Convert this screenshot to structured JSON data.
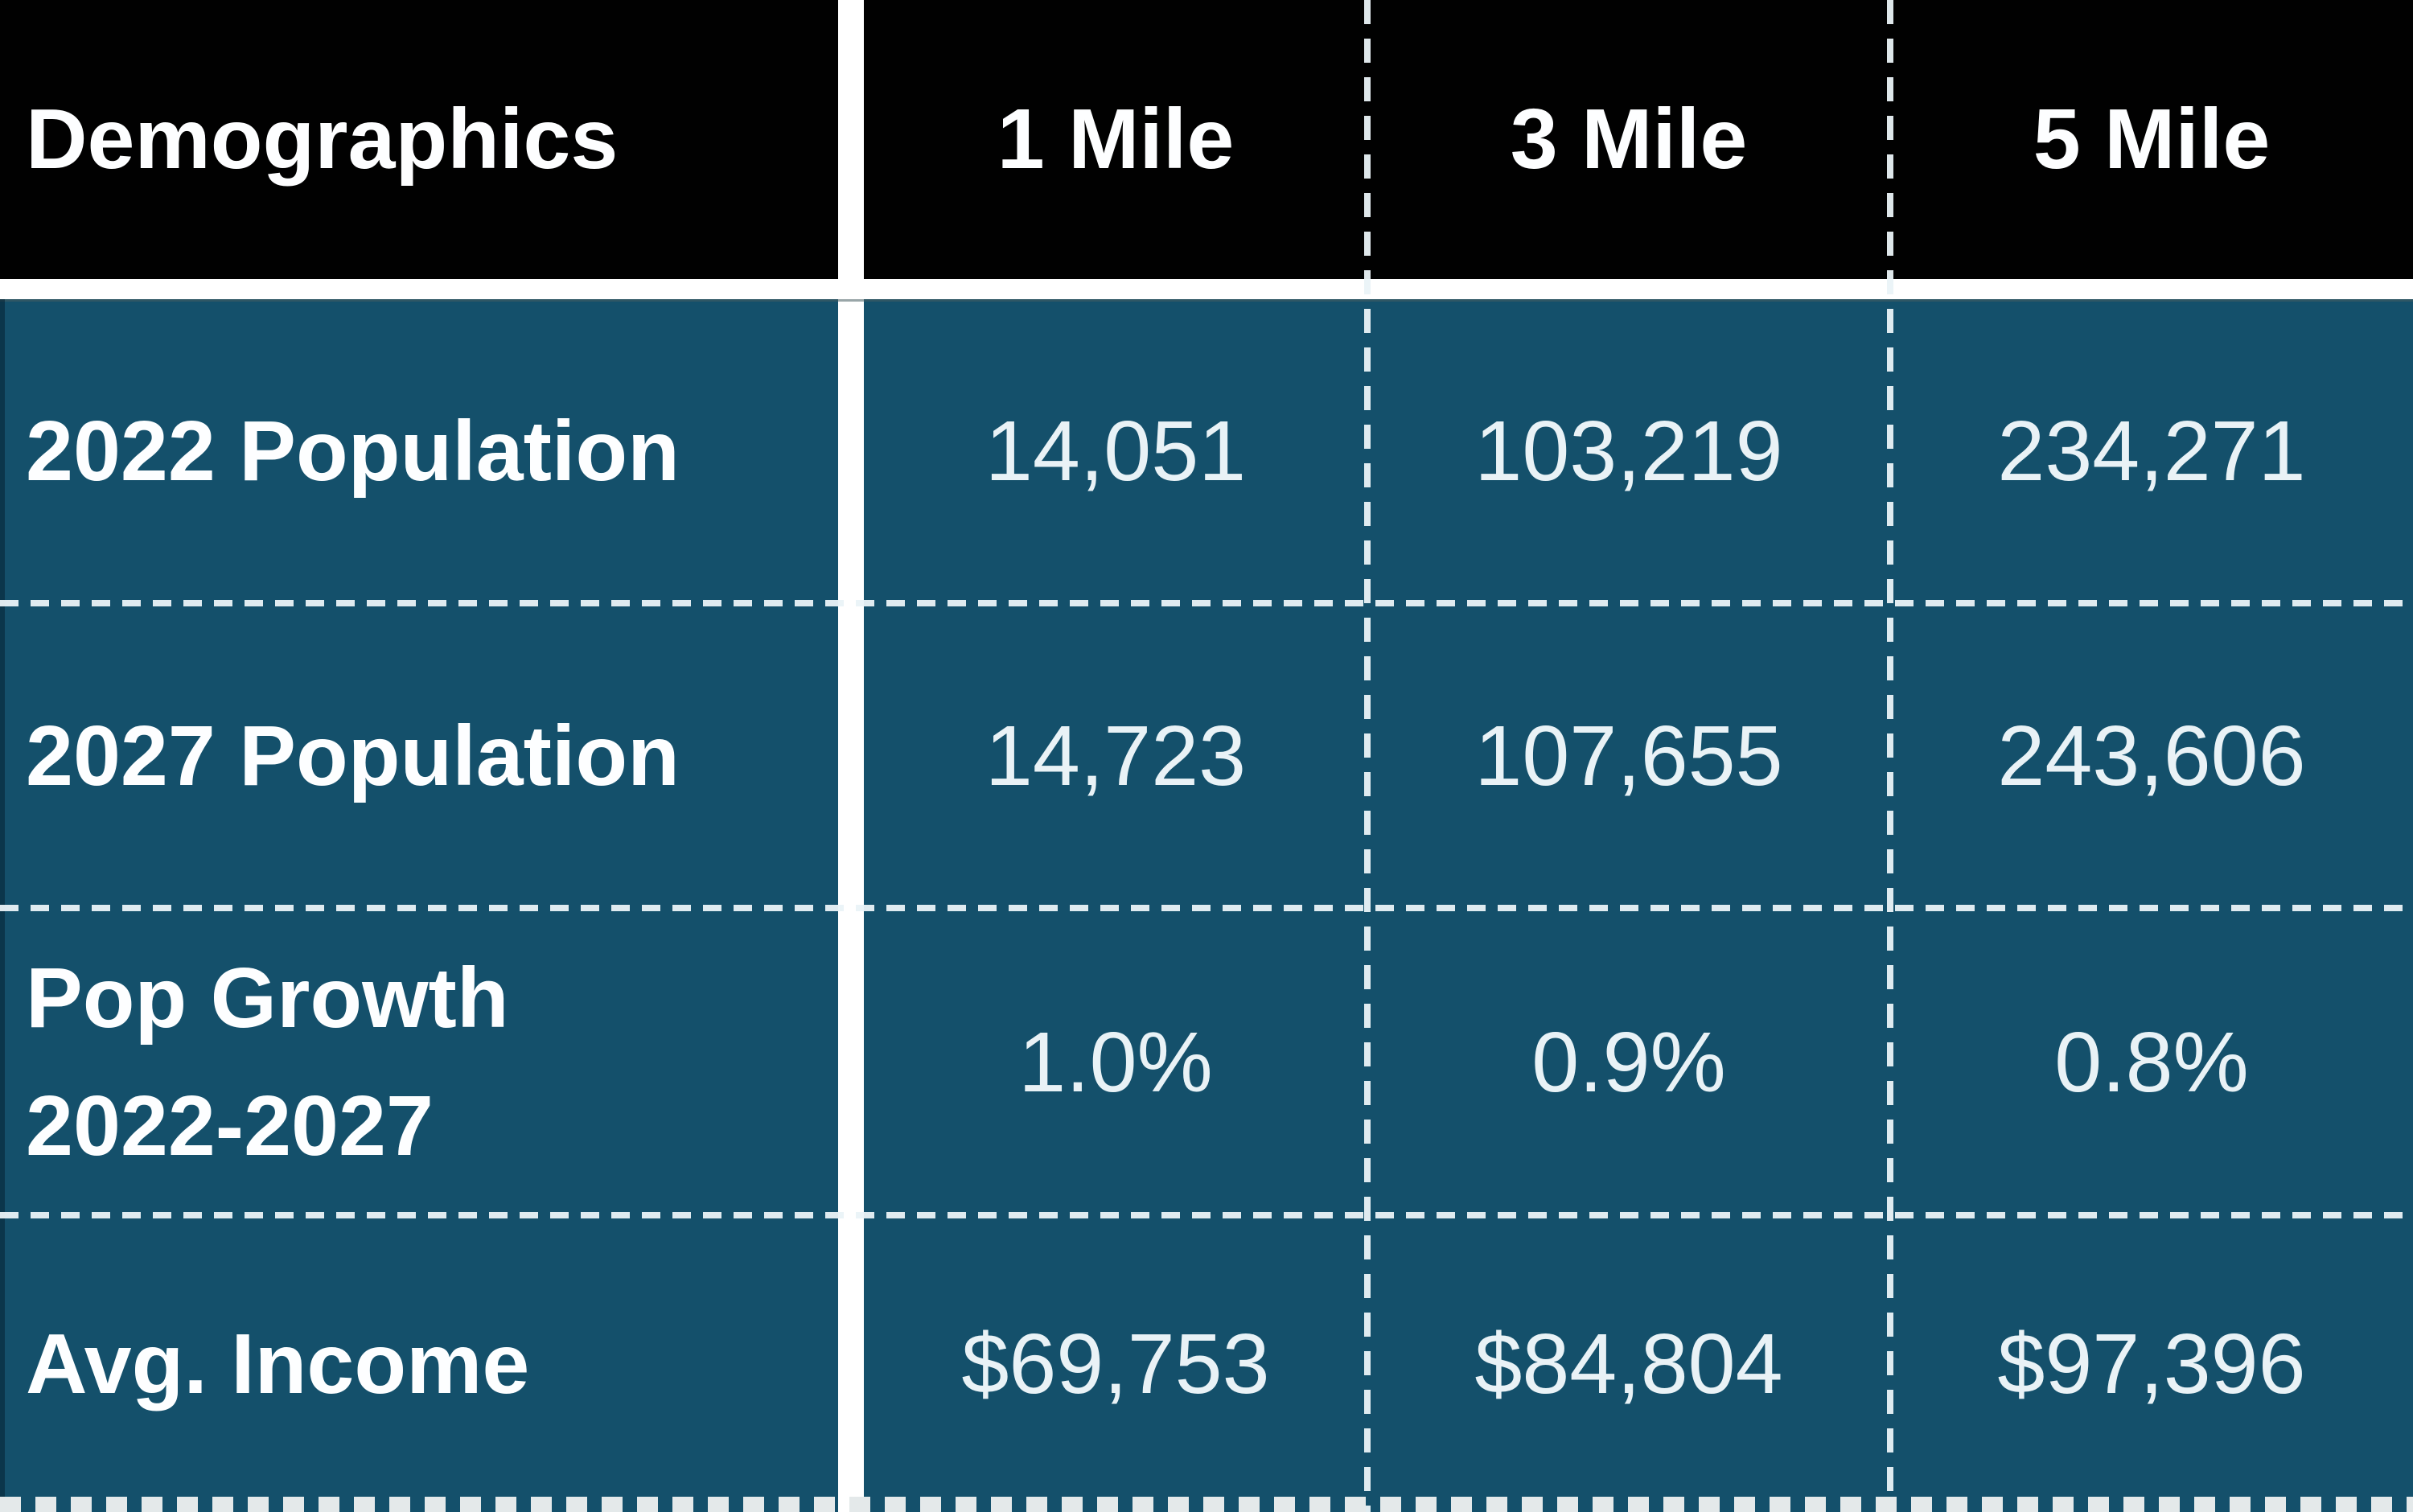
{
  "table": {
    "header": {
      "label": "Demographics",
      "columns": [
        "1 Mile",
        "3 Mile",
        "5 Mile"
      ]
    },
    "rows": [
      {
        "label": "2022 Population",
        "values": [
          "14,051",
          "103,219",
          "234,271"
        ]
      },
      {
        "label": "2027 Population",
        "values": [
          "14,723",
          "107,655",
          "243,606"
        ]
      },
      {
        "label": "Pop Growth",
        "label_line2": "2022-2027",
        "values": [
          "1.0%",
          "0.9%",
          "0.8%"
        ]
      },
      {
        "label": "Avg. Income",
        "values": [
          "$69,753",
          "$84,804",
          "$97,396"
        ]
      }
    ],
    "colors": {
      "header_bg": "#010101",
      "row_bg": "#14506b",
      "header_text": "#fdfeff",
      "value_text": "#e9f2f6",
      "divider": "#eaf3f7",
      "gutter": "#ffffff"
    }
  },
  "chart_data": {
    "type": "table",
    "title": "Demographics",
    "columns": [
      "Demographics",
      "1 Mile",
      "3 Mile",
      "5 Mile"
    ],
    "rows": [
      [
        "2022 Population",
        "14,051",
        "103,219",
        "234,271"
      ],
      [
        "2027 Population",
        "14,723",
        "107,655",
        "243,606"
      ],
      [
        "Pop Growth 2022-2027",
        "1.0%",
        "0.9%",
        "0.8%"
      ],
      [
        "Avg. Income",
        "$69,753",
        "$84,804",
        "$97,396"
      ]
    ]
  }
}
